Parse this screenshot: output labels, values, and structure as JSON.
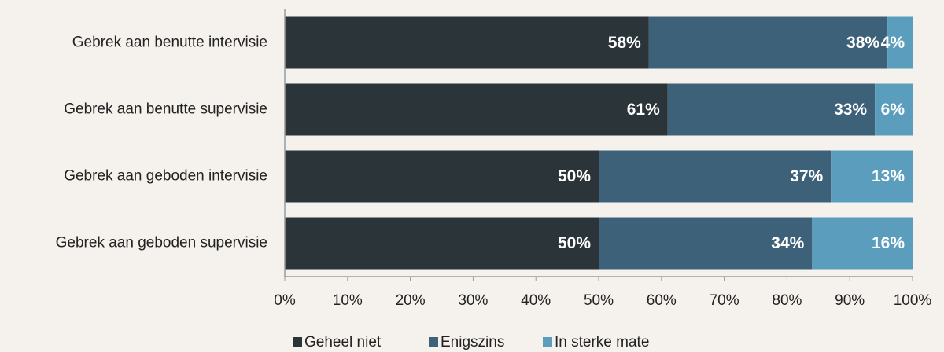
{
  "chart_data": {
    "type": "stacked_barh",
    "categories": [
      "Gebrek aan benutte intervisie",
      "Gebrek aan benutte supervisie",
      "Gebrek aan geboden intervisie",
      "Gebrek aan geboden supervisie"
    ],
    "series": [
      {
        "name": "Geheel niet",
        "color": "#2a3439",
        "values": [
          58,
          61,
          50,
          50
        ],
        "value_labels": [
          "58%",
          "61%",
          "50%",
          "50%"
        ]
      },
      {
        "name": "Enigszins",
        "color": "#3d6178",
        "values": [
          38,
          33,
          37,
          34
        ],
        "value_labels": [
          "38%",
          "33%",
          "37%",
          "34%"
        ]
      },
      {
        "name": "In sterke mate",
        "color": "#5b9dbd",
        "values": [
          4,
          6,
          13,
          16
        ],
        "value_labels": [
          "4%",
          "6%",
          "13%",
          "16%"
        ]
      }
    ],
    "xlim": [
      0,
      100
    ],
    "xticks": [
      {
        "value": 0,
        "label": "0%"
      },
      {
        "value": 10,
        "label": "10%"
      },
      {
        "value": 20,
        "label": "20%"
      },
      {
        "value": 30,
        "label": "30%"
      },
      {
        "value": 40,
        "label": "40%"
      },
      {
        "value": 50,
        "label": "50%"
      },
      {
        "value": 60,
        "label": "60%"
      },
      {
        "value": 70,
        "label": "70%"
      },
      {
        "value": 80,
        "label": "80%"
      },
      {
        "value": 90,
        "label": "90%"
      },
      {
        "value": 100,
        "label": "100%"
      }
    ],
    "legend": "bottom"
  }
}
